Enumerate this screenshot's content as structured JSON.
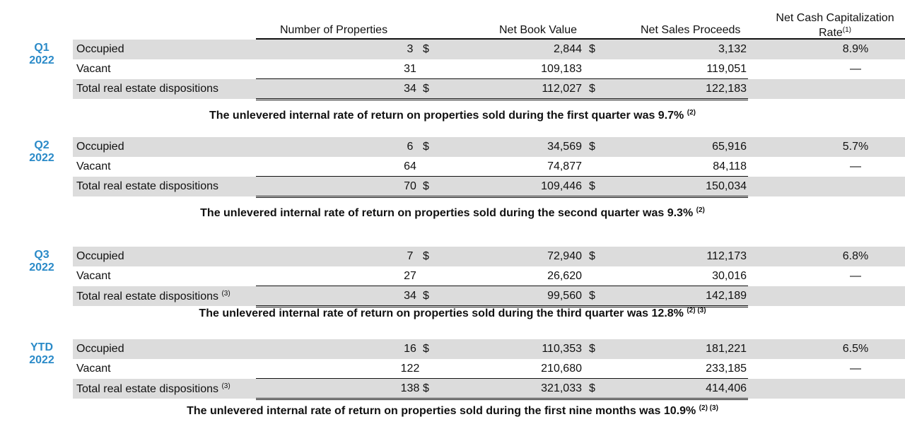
{
  "headers": {
    "properties": "Number of Properties",
    "net_book_value": "Net Book Value",
    "net_sales_proceeds": "Net Sales Proceeds",
    "rate_line1": "Net Cash Capitalization",
    "rate_line2": "Rate",
    "rate_sup": "(1)"
  },
  "sections": [
    {
      "period": "Q1",
      "year": "2022",
      "rows": [
        {
          "label": "Occupied",
          "sup": "",
          "properties": "3",
          "dollar1": "$",
          "nbv": "2,844",
          "dollar2": "$",
          "nsp": "3,132",
          "rate": "8.9%"
        },
        {
          "label": "Vacant",
          "sup": "",
          "properties": "31",
          "dollar1": "",
          "nbv": "109,183",
          "dollar2": "",
          "nsp": "119,051",
          "rate": "—"
        },
        {
          "label": "Total real estate dispositions",
          "sup": "",
          "properties": "34",
          "dollar1": "$",
          "nbv": "112,027",
          "dollar2": "$",
          "nsp": "122,183",
          "rate": ""
        }
      ],
      "note": "The unlevered internal rate of return on properties sold during the first quarter was 9.7%",
      "note_sup": "(2)"
    },
    {
      "period": "Q2",
      "year": "2022",
      "rows": [
        {
          "label": "Occupied",
          "sup": "",
          "properties": "6",
          "dollar1": "$",
          "nbv": "34,569",
          "dollar2": "$",
          "nsp": "65,916",
          "rate": "5.7%"
        },
        {
          "label": "Vacant",
          "sup": "",
          "properties": "64",
          "dollar1": "",
          "nbv": "74,877",
          "dollar2": "",
          "nsp": "84,118",
          "rate": "—"
        },
        {
          "label": "Total real estate dispositions",
          "sup": "",
          "properties": "70",
          "dollar1": "$",
          "nbv": "109,446",
          "dollar2": "$",
          "nsp": "150,034",
          "rate": ""
        }
      ],
      "note": "The unlevered internal rate of return on properties sold during the second quarter was 9.3%",
      "note_sup": "(2)"
    },
    {
      "period": "Q3",
      "year": "2022",
      "rows": [
        {
          "label": "Occupied",
          "sup": "",
          "properties": "7",
          "dollar1": "$",
          "nbv": "72,940",
          "dollar2": "$",
          "nsp": "112,173",
          "rate": "6.8%"
        },
        {
          "label": "Vacant",
          "sup": "",
          "properties": "27",
          "dollar1": "",
          "nbv": "26,620",
          "dollar2": "",
          "nsp": "30,016",
          "rate": "—"
        },
        {
          "label": "Total real estate dispositions",
          "sup": "(3)",
          "properties": "34",
          "dollar1": "$",
          "nbv": "99,560",
          "dollar2": "$",
          "nsp": "142,189",
          "rate": ""
        }
      ],
      "note": "The unlevered internal rate of return on properties sold during the third quarter was 12.8%",
      "note_sup": "(2) (3)"
    },
    {
      "period": "YTD",
      "year": "2022",
      "rows": [
        {
          "label": "Occupied",
          "sup": "",
          "properties": "16",
          "dollar1": "$",
          "nbv": "110,353",
          "dollar2": "$",
          "nsp": "181,221",
          "rate": "6.5%"
        },
        {
          "label": "Vacant",
          "sup": "",
          "properties": "122",
          "dollar1": "",
          "nbv": "210,680",
          "dollar2": "",
          "nsp": "233,185",
          "rate": "—"
        },
        {
          "label": "Total real estate dispositions",
          "sup": "(3)",
          "properties": "138",
          "dollar1": "$",
          "nbv": "321,033",
          "dollar2": "$",
          "nsp": "414,406",
          "rate": ""
        }
      ],
      "note": "The unlevered internal rate of return on properties sold during the first nine months was 10.9%",
      "note_sup": "(2) (3)"
    }
  ]
}
